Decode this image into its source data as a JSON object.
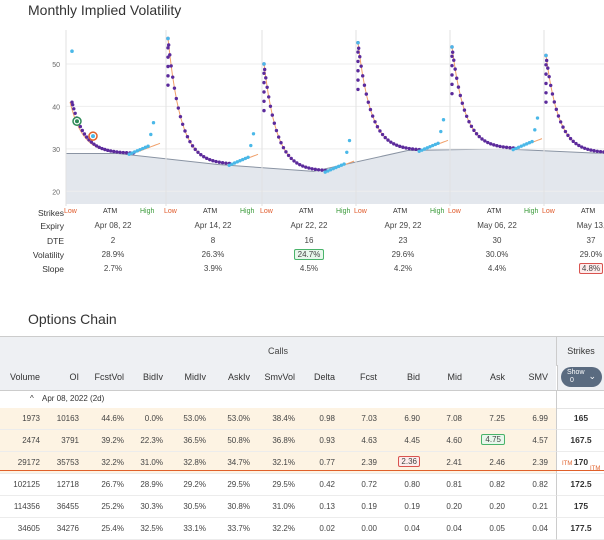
{
  "vol_section": {
    "title": "Monthly Implied Volatility",
    "y_ticks": [
      "50",
      "40",
      "30",
      "20"
    ]
  },
  "chart_data": {
    "type": "scatter",
    "ylim": [
      17,
      58
    ],
    "yticks": [
      20,
      30,
      40,
      50
    ],
    "expiries": [
      "Apr 08, 22",
      "Apr 14, 22",
      "Apr 22, 22",
      "Apr 29, 22",
      "May 06, 22",
      "May 13, 22"
    ],
    "atm_iv": [
      28.9,
      26.3,
      24.7,
      29.6,
      30.0,
      29.0
    ],
    "colors": {
      "calls": "#4ab8e8",
      "puts": "#5b2a9c",
      "fit": "#f0a06a",
      "atm_area": "#d7dde6"
    }
  },
  "info_rows": {
    "strikes_label": "Strikes",
    "expiry_label": "Expiry",
    "dte_label": "DTE",
    "volatility_label": "Volatility",
    "slope_label": "Slope",
    "low": "Low",
    "atm": "ATM",
    "high": "High",
    "columns": [
      {
        "expiry": "Apr 08, 22",
        "dte": "2",
        "vol": "28.9%",
        "slope": "2.7%"
      },
      {
        "expiry": "Apr 14, 22",
        "dte": "8",
        "vol": "26.3%",
        "slope": "3.9%"
      },
      {
        "expiry": "Apr 22, 22",
        "dte": "16",
        "vol": "24.7%",
        "slope": "4.5%"
      },
      {
        "expiry": "Apr 29, 22",
        "dte": "23",
        "vol": "29.6%",
        "slope": "4.2%"
      },
      {
        "expiry": "May 06, 22",
        "dte": "30",
        "vol": "30.0%",
        "slope": "4.4%"
      },
      {
        "expiry": "May 13,",
        "dte": "37",
        "vol": "29.0%",
        "slope": "4.8%"
      }
    ]
  },
  "chain": {
    "title": "Options Chain",
    "group_label": "Calls",
    "strikes_header": "Strikes",
    "show_label_1": "Show",
    "show_label_2": "0",
    "expiry_group": "Apr 08, 2022 (2d)",
    "columns": [
      "Volume",
      "OI",
      "FcstVol",
      "BidIv",
      "MidIv",
      "AskIv",
      "SmvVol",
      "Delta",
      "Fcst",
      "Bid",
      "Mid",
      "Ask",
      "SMV"
    ],
    "rows": [
      {
        "v": [
          "1973",
          "10163",
          "44.6%",
          "0.0%",
          "53.0%",
          "53.0%",
          "38.4%",
          "0.98",
          "7.03",
          "6.90",
          "7.08",
          "7.25",
          "6.99"
        ],
        "strike": "165"
      },
      {
        "v": [
          "2474",
          "3791",
          "39.2%",
          "22.3%",
          "36.5%",
          "50.8%",
          "36.8%",
          "0.93",
          "4.63",
          "4.45",
          "4.60",
          "4.75",
          "4.57"
        ],
        "strike": "167.5"
      },
      {
        "v": [
          "29172",
          "35753",
          "32.2%",
          "31.0%",
          "32.8%",
          "34.7%",
          "32.1%",
          "0.77",
          "2.39",
          "2.36",
          "2.41",
          "2.46",
          "2.39"
        ],
        "strike": "170"
      },
      {
        "v": [
          "102125",
          "12718",
          "26.7%",
          "28.9%",
          "29.2%",
          "29.5%",
          "29.5%",
          "0.42",
          "0.72",
          "0.80",
          "0.81",
          "0.82",
          "0.82"
        ],
        "strike": "172.5"
      },
      {
        "v": [
          "114356",
          "36455",
          "25.2%",
          "30.3%",
          "30.5%",
          "30.8%",
          "31.0%",
          "0.13",
          "0.19",
          "0.19",
          "0.20",
          "0.20",
          "0.21"
        ],
        "strike": "175"
      },
      {
        "v": [
          "34605",
          "34276",
          "25.4%",
          "32.5%",
          "33.1%",
          "33.7%",
          "32.2%",
          "0.02",
          "0.00",
          "0.04",
          "0.04",
          "0.05",
          "0.04"
        ],
        "strike": "177.5"
      }
    ],
    "itm_tag": "ITM"
  }
}
